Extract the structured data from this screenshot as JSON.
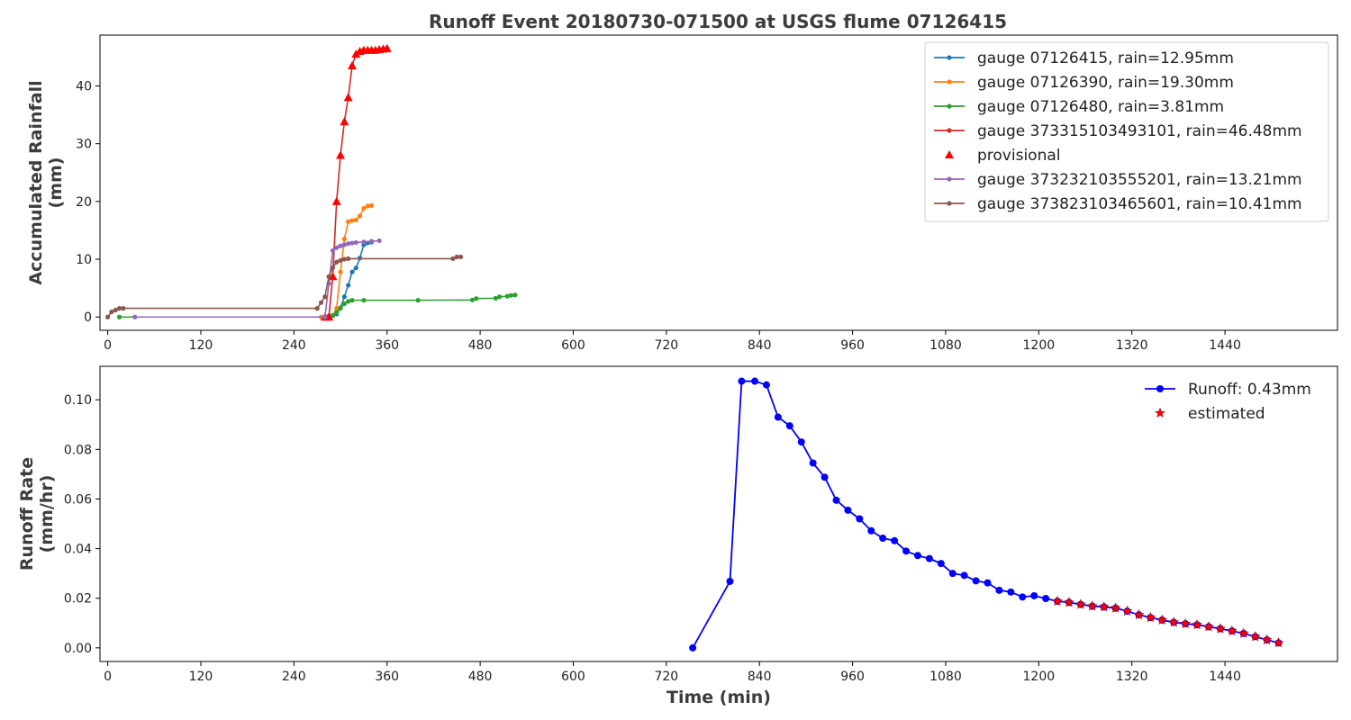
{
  "title": "Runoff Event 20180730-071500 at USGS flume 07126415",
  "chart_data": [
    {
      "type": "line",
      "ylabel": [
        "Accumulated Rainfall",
        "(mm)"
      ],
      "xlim": [
        -10,
        1585
      ],
      "ylim": [
        -2.3,
        48.8
      ],
      "xticks": [
        0,
        120,
        240,
        360,
        480,
        600,
        720,
        840,
        960,
        1080,
        1200,
        1320,
        1440
      ],
      "yticks": [
        0,
        10,
        20,
        30,
        40
      ],
      "legend_position": "top-right",
      "series": [
        {
          "name": "gauge 07126415, rain=12.95mm",
          "color": "#1f77b4",
          "marker": "dot",
          "points": [
            [
              280,
              0
            ],
            [
              285,
              0.2
            ],
            [
              290,
              0.3
            ],
            [
              295,
              0.5
            ],
            [
              300,
              1.6
            ],
            [
              305,
              3.5
            ],
            [
              310,
              5.5
            ],
            [
              315,
              7.8
            ],
            [
              320,
              8.5
            ],
            [
              325,
              10.2
            ],
            [
              330,
              12.5
            ],
            [
              335,
              12.8
            ],
            [
              340,
              12.95
            ]
          ]
        },
        {
          "name": "gauge 07126390, rain=19.30mm",
          "color": "#ff7f0e",
          "marker": "dot",
          "points": [
            [
              275,
              0
            ],
            [
              280,
              0
            ],
            [
              285,
              0.1
            ],
            [
              290,
              0.2
            ],
            [
              295,
              1.5
            ],
            [
              300,
              7.8
            ],
            [
              305,
              13.5
            ],
            [
              310,
              16.5
            ],
            [
              315,
              16.7
            ],
            [
              320,
              16.8
            ],
            [
              325,
              17.5
            ],
            [
              330,
              18.8
            ],
            [
              335,
              19.2
            ],
            [
              340,
              19.3
            ]
          ]
        },
        {
          "name": "gauge 07126480, rain=3.81mm",
          "color": "#2ca02c",
          "marker": "dot",
          "points": [
            [
              15,
              0
            ],
            [
              285,
              0
            ],
            [
              290,
              0.2
            ],
            [
              295,
              0.8
            ],
            [
              300,
              1.5
            ],
            [
              305,
              2.3
            ],
            [
              310,
              2.7
            ],
            [
              315,
              2.9
            ],
            [
              330,
              2.9
            ],
            [
              400,
              2.9
            ],
            [
              470,
              2.95
            ],
            [
              475,
              3.2
            ],
            [
              500,
              3.25
            ],
            [
              505,
              3.5
            ],
            [
              515,
              3.6
            ],
            [
              520,
              3.75
            ],
            [
              525,
              3.81
            ]
          ]
        },
        {
          "name": "gauge 373315103493101, rain=46.48mm",
          "color": "#d62728",
          "marker": "dot",
          "points": [
            [
              280,
              0
            ],
            [
              285,
              0
            ],
            [
              290,
              7.0
            ],
            [
              295,
              20.0
            ],
            [
              300,
              28.0
            ],
            [
              305,
              33.8
            ],
            [
              310,
              38.0
            ],
            [
              315,
              43.5
            ],
            [
              320,
              45.5
            ],
            [
              325,
              46.0
            ],
            [
              330,
              46.2
            ],
            [
              335,
              46.2
            ],
            [
              340,
              46.2
            ],
            [
              345,
              46.2
            ],
            [
              350,
              46.3
            ],
            [
              355,
              46.4
            ],
            [
              360,
              46.48
            ]
          ]
        },
        {
          "name": "provisional",
          "color": "#ff0000",
          "marker": "triangle",
          "line": false,
          "points": [
            [
              280,
              0
            ],
            [
              285,
              0
            ],
            [
              290,
              7.0
            ],
            [
              295,
              20.0
            ],
            [
              300,
              28.0
            ],
            [
              305,
              33.8
            ],
            [
              310,
              38.0
            ],
            [
              315,
              43.5
            ],
            [
              320,
              45.5
            ],
            [
              325,
              46.0
            ],
            [
              330,
              46.2
            ],
            [
              335,
              46.2
            ],
            [
              340,
              46.2
            ],
            [
              345,
              46.2
            ],
            [
              350,
              46.3
            ],
            [
              355,
              46.4
            ],
            [
              360,
              46.48
            ]
          ]
        },
        {
          "name": "gauge 373232103555201, rain=13.21mm",
          "color": "#9467bd",
          "marker": "dot",
          "points": [
            [
              35,
              0
            ],
            [
              280,
              0
            ],
            [
              285,
              5.8
            ],
            [
              290,
              11.5
            ],
            [
              295,
              12.0
            ],
            [
              300,
              12.3
            ],
            [
              305,
              12.5
            ],
            [
              310,
              12.7
            ],
            [
              315,
              12.8
            ],
            [
              320,
              12.9
            ],
            [
              330,
              13.0
            ],
            [
              340,
              13.1
            ],
            [
              350,
              13.21
            ]
          ]
        },
        {
          "name": "gauge 373823103465601, rain=10.41mm",
          "color": "#8c564b",
          "marker": "dot",
          "points": [
            [
              0,
              0
            ],
            [
              5,
              0.9
            ],
            [
              10,
              1.2
            ],
            [
              15,
              1.5
            ],
            [
              20,
              1.5
            ],
            [
              270,
              1.5
            ],
            [
              275,
              2.5
            ],
            [
              280,
              3.5
            ],
            [
              285,
              7.0
            ],
            [
              290,
              8.5
            ],
            [
              295,
              9.5
            ],
            [
              300,
              9.8
            ],
            [
              305,
              10.0
            ],
            [
              310,
              10.1
            ],
            [
              445,
              10.1
            ],
            [
              450,
              10.4
            ],
            [
              455,
              10.41
            ]
          ]
        }
      ]
    },
    {
      "type": "line",
      "xlabel": "Time (min)",
      "ylabel": [
        "Runoff Rate",
        "(mm/hr)"
      ],
      "xlim": [
        -10,
        1585
      ],
      "ylim": [
        -0.0055,
        0.1135
      ],
      "xticks": [
        0,
        120,
        240,
        360,
        480,
        600,
        720,
        840,
        960,
        1080,
        1200,
        1320,
        1440
      ],
      "yticks": [
        "0.00",
        "0.02",
        "0.04",
        "0.06",
        "0.08",
        "0.10"
      ],
      "legend_position": "top-right",
      "series": [
        {
          "name": "Runoff: 0.43mm",
          "color": "#0000ff",
          "marker": "dot",
          "points": [
            [
              754,
              0.0
            ],
            [
              802,
              0.0268
            ],
            [
              817,
              0.1075
            ],
            [
              834,
              0.1075
            ],
            [
              849,
              0.106
            ],
            [
              864,
              0.093
            ],
            [
              879,
              0.0895
            ],
            [
              894,
              0.083
            ],
            [
              909,
              0.0745
            ],
            [
              924,
              0.0688
            ],
            [
              939,
              0.0595
            ],
            [
              954,
              0.0555
            ],
            [
              969,
              0.052
            ],
            [
              984,
              0.0472
            ],
            [
              999,
              0.0442
            ],
            [
              1014,
              0.0432
            ],
            [
              1029,
              0.039
            ],
            [
              1044,
              0.0372
            ],
            [
              1059,
              0.036
            ],
            [
              1074,
              0.034
            ],
            [
              1089,
              0.03
            ],
            [
              1104,
              0.0292
            ],
            [
              1119,
              0.027
            ],
            [
              1134,
              0.0262
            ],
            [
              1149,
              0.0232
            ],
            [
              1164,
              0.0225
            ],
            [
              1179,
              0.0205
            ],
            [
              1194,
              0.021
            ],
            [
              1209,
              0.0199
            ],
            [
              1224,
              0.0188
            ],
            [
              1239,
              0.0183
            ],
            [
              1254,
              0.0175
            ],
            [
              1269,
              0.0168
            ],
            [
              1284,
              0.0165
            ],
            [
              1299,
              0.016
            ],
            [
              1314,
              0.0148
            ],
            [
              1329,
              0.0133
            ],
            [
              1344,
              0.0122
            ],
            [
              1359,
              0.0112
            ],
            [
              1374,
              0.0103
            ],
            [
              1389,
              0.0097
            ],
            [
              1404,
              0.0093
            ],
            [
              1419,
              0.0085
            ],
            [
              1434,
              0.0077
            ],
            [
              1449,
              0.0068
            ],
            [
              1464,
              0.0058
            ],
            [
              1479,
              0.0045
            ],
            [
              1494,
              0.0032
            ],
            [
              1509,
              0.002
            ]
          ]
        },
        {
          "name": "estimated",
          "color": "#ff0000",
          "marker": "star",
          "line": false,
          "points": [
            [
              1224,
              0.0188
            ],
            [
              1239,
              0.0183
            ],
            [
              1254,
              0.0175
            ],
            [
              1269,
              0.0168
            ],
            [
              1284,
              0.0165
            ],
            [
              1299,
              0.016
            ],
            [
              1314,
              0.0148
            ],
            [
              1329,
              0.0133
            ],
            [
              1344,
              0.0122
            ],
            [
              1359,
              0.0112
            ],
            [
              1374,
              0.0103
            ],
            [
              1389,
              0.0097
            ],
            [
              1404,
              0.0093
            ],
            [
              1419,
              0.0085
            ],
            [
              1434,
              0.0077
            ],
            [
              1449,
              0.0068
            ],
            [
              1464,
              0.0058
            ],
            [
              1479,
              0.0045
            ],
            [
              1494,
              0.0032
            ],
            [
              1509,
              0.002
            ]
          ]
        }
      ]
    }
  ]
}
